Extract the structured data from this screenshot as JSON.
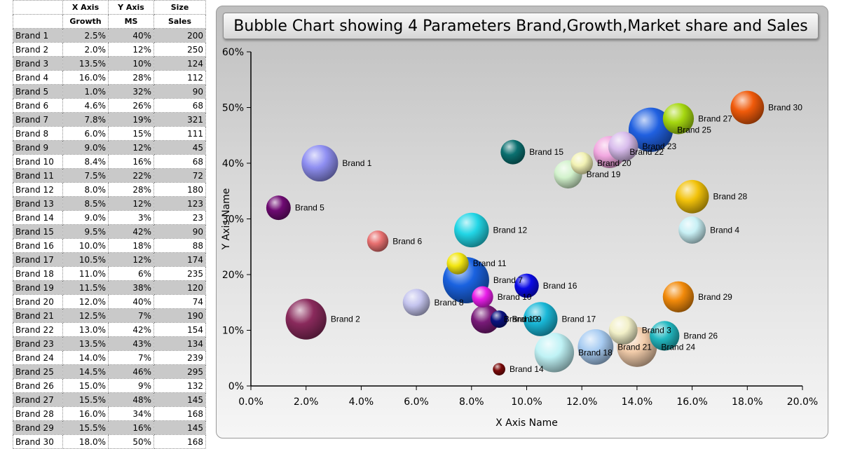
{
  "table": {
    "header1": [
      "",
      "X Axis",
      "Y Axis",
      "Size"
    ],
    "header2": [
      "",
      "Growth",
      "MS",
      "Sales"
    ],
    "rows": [
      [
        "Brand 1",
        "2.5%",
        "40%",
        "200"
      ],
      [
        "Brand 2",
        "2.0%",
        "12%",
        "250"
      ],
      [
        "Brand 3",
        "13.5%",
        "10%",
        "124"
      ],
      [
        "Brand 4",
        "16.0%",
        "28%",
        "112"
      ],
      [
        "Brand 5",
        "1.0%",
        "32%",
        "90"
      ],
      [
        "Brand 6",
        "4.6%",
        "26%",
        "68"
      ],
      [
        "Brand 7",
        "7.8%",
        "19%",
        "321"
      ],
      [
        "Brand 8",
        "6.0%",
        "15%",
        "111"
      ],
      [
        "Brand 9",
        "9.0%",
        "12%",
        "45"
      ],
      [
        "Brand 10",
        "8.4%",
        "16%",
        "68"
      ],
      [
        "Brand 11",
        "7.5%",
        "22%",
        "72"
      ],
      [
        "Brand 12",
        "8.0%",
        "28%",
        "180"
      ],
      [
        "Brand 13",
        "8.5%",
        "12%",
        "123"
      ],
      [
        "Brand 14",
        "9.0%",
        "3%",
        "23"
      ],
      [
        "Brand 15",
        "9.5%",
        "42%",
        "90"
      ],
      [
        "Brand 16",
        "10.0%",
        "18%",
        "88"
      ],
      [
        "Brand 17",
        "10.5%",
        "12%",
        "174"
      ],
      [
        "Brand 18",
        "11.0%",
        "6%",
        "235"
      ],
      [
        "Brand 19",
        "11.5%",
        "38%",
        "120"
      ],
      [
        "Brand 20",
        "12.0%",
        "40%",
        "74"
      ],
      [
        "Brand 21",
        "12.5%",
        "7%",
        "190"
      ],
      [
        "Brand 22",
        "13.0%",
        "42%",
        "154"
      ],
      [
        "Brand 23",
        "13.5%",
        "43%",
        "134"
      ],
      [
        "Brand 24",
        "14.0%",
        "7%",
        "239"
      ],
      [
        "Brand 25",
        "14.5%",
        "46%",
        "295"
      ],
      [
        "Brand 26",
        "15.0%",
        "9%",
        "132"
      ],
      [
        "Brand 27",
        "15.5%",
        "48%",
        "145"
      ],
      [
        "Brand 28",
        "16.0%",
        "34%",
        "168"
      ],
      [
        "Brand 29",
        "15.5%",
        "16%",
        "145"
      ],
      [
        "Brand 30",
        "18.0%",
        "50%",
        "168"
      ]
    ]
  },
  "chart_data": {
    "type": "scatter",
    "subtype": "bubble",
    "title": "Bubble Chart showing 4 Parameters Brand,Growth,Market share and Sales",
    "xlabel": "X Axis Name",
    "ylabel": "Y Axis Name",
    "xlim": [
      0,
      0.2
    ],
    "ylim": [
      0,
      0.6
    ],
    "xticks": [
      "0.0%",
      "2.0%",
      "4.0%",
      "6.0%",
      "8.0%",
      "10.0%",
      "12.0%",
      "14.0%",
      "16.0%",
      "18.0%",
      "20.0%"
    ],
    "yticks": [
      "0%",
      "10%",
      "20%",
      "30%",
      "40%",
      "50%",
      "60%"
    ],
    "points": [
      {
        "name": "Brand 1",
        "x": 0.025,
        "y": 0.4,
        "size": 200,
        "color": "#8f8ff2"
      },
      {
        "name": "Brand 2",
        "x": 0.02,
        "y": 0.12,
        "size": 250,
        "color": "#8a2a5c"
      },
      {
        "name": "Brand 3",
        "x": 0.135,
        "y": 0.1,
        "size": 124,
        "color": "#f2f0c8"
      },
      {
        "name": "Brand 4",
        "x": 0.16,
        "y": 0.28,
        "size": 112,
        "color": "#c8f0f5"
      },
      {
        "name": "Brand 5",
        "x": 0.01,
        "y": 0.32,
        "size": 90,
        "color": "#6e0a72"
      },
      {
        "name": "Brand 6",
        "x": 0.046,
        "y": 0.26,
        "size": 68,
        "color": "#e87070"
      },
      {
        "name": "Brand 7",
        "x": 0.078,
        "y": 0.19,
        "size": 321,
        "color": "#1a62e0"
      },
      {
        "name": "Brand 8",
        "x": 0.06,
        "y": 0.15,
        "size": 111,
        "color": "#c4c4ee"
      },
      {
        "name": "Brand 9",
        "x": 0.09,
        "y": 0.12,
        "size": 45,
        "color": "#0a1280"
      },
      {
        "name": "Brand 10",
        "x": 0.084,
        "y": 0.16,
        "size": 68,
        "color": "#e81ee8"
      },
      {
        "name": "Brand 11",
        "x": 0.075,
        "y": 0.22,
        "size": 72,
        "color": "#f2e610"
      },
      {
        "name": "Brand 12",
        "x": 0.08,
        "y": 0.28,
        "size": 180,
        "color": "#22d6e6"
      },
      {
        "name": "Brand 13",
        "x": 0.085,
        "y": 0.12,
        "size": 123,
        "color": "#781a78"
      },
      {
        "name": "Brand 14",
        "x": 0.09,
        "y": 0.03,
        "size": 23,
        "color": "#7a0a0a"
      },
      {
        "name": "Brand 15",
        "x": 0.095,
        "y": 0.42,
        "size": 90,
        "color": "#0a7070"
      },
      {
        "name": "Brand 16",
        "x": 0.1,
        "y": 0.18,
        "size": 88,
        "color": "#0a0ae6"
      },
      {
        "name": "Brand 17",
        "x": 0.105,
        "y": 0.12,
        "size": 174,
        "color": "#1ab8d8"
      },
      {
        "name": "Brand 18",
        "x": 0.11,
        "y": 0.06,
        "size": 235,
        "color": "#bff2f5"
      },
      {
        "name": "Brand 19",
        "x": 0.115,
        "y": 0.38,
        "size": 120,
        "color": "#d2f2cc"
      },
      {
        "name": "Brand 20",
        "x": 0.12,
        "y": 0.4,
        "size": 74,
        "color": "#f2f2b4"
      },
      {
        "name": "Brand 21",
        "x": 0.125,
        "y": 0.07,
        "size": 190,
        "color": "#a8ccf2"
      },
      {
        "name": "Brand 22",
        "x": 0.13,
        "y": 0.42,
        "size": 154,
        "color": "#f2a8e0"
      },
      {
        "name": "Brand 23",
        "x": 0.135,
        "y": 0.43,
        "size": 134,
        "color": "#d8bcec"
      },
      {
        "name": "Brand 24",
        "x": 0.14,
        "y": 0.07,
        "size": 239,
        "color": "#f2ccaa"
      },
      {
        "name": "Brand 25",
        "x": 0.145,
        "y": 0.46,
        "size": 295,
        "color": "#2060e0"
      },
      {
        "name": "Brand 26",
        "x": 0.15,
        "y": 0.09,
        "size": 132,
        "color": "#22b8c0"
      },
      {
        "name": "Brand 27",
        "x": 0.155,
        "y": 0.48,
        "size": 145,
        "color": "#a6d810"
      },
      {
        "name": "Brand 28",
        "x": 0.16,
        "y": 0.34,
        "size": 168,
        "color": "#f2c20a"
      },
      {
        "name": "Brand 29",
        "x": 0.155,
        "y": 0.16,
        "size": 145,
        "color": "#f28a0a"
      },
      {
        "name": "Brand 30",
        "x": 0.18,
        "y": 0.5,
        "size": 168,
        "color": "#f05a0a"
      }
    ]
  }
}
